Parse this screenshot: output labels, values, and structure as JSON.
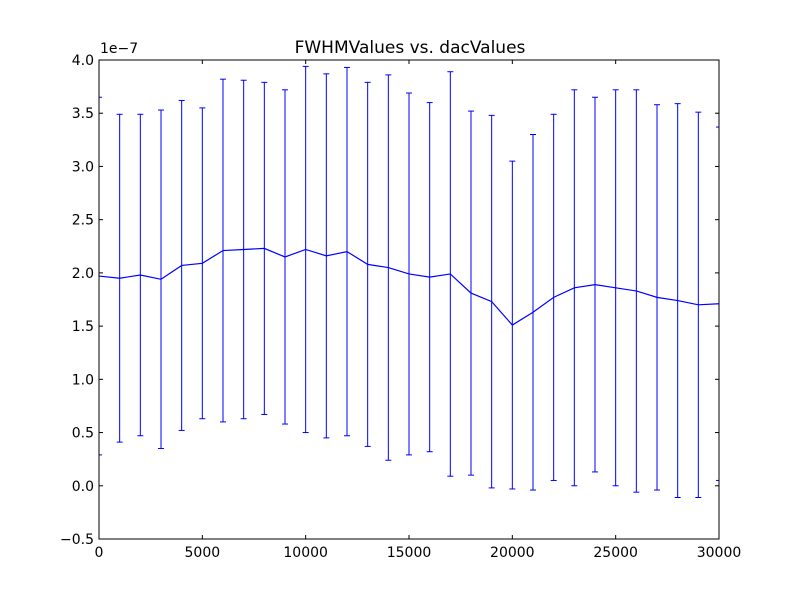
{
  "chart_data": {
    "type": "line",
    "title": "FWHMValues vs. dacValues",
    "xlabel": "",
    "ylabel": "",
    "y_offset_label": "1e−7",
    "y_scale": 1e-07,
    "xlim": [
      0,
      30000
    ],
    "ylim": [
      -0.5,
      4.0
    ],
    "grid": false,
    "line_color": "#0000ff",
    "x_ticks": [
      0,
      5000,
      10000,
      15000,
      20000,
      25000,
      30000
    ],
    "x_tick_labels": [
      "0",
      "5000",
      "10000",
      "15000",
      "20000",
      "25000",
      "30000"
    ],
    "y_ticks": [
      -0.5,
      0.0,
      0.5,
      1.0,
      1.5,
      2.0,
      2.5,
      3.0,
      3.5,
      4.0
    ],
    "y_tick_labels": [
      "−0.5",
      "0.0",
      "0.5",
      "1.0",
      "1.5",
      "2.0",
      "2.5",
      "3.0",
      "3.5",
      "4.0"
    ],
    "series": [
      {
        "x": [
          0,
          1000,
          2000,
          3000,
          4000,
          5000,
          6000,
          7000,
          8000,
          9000,
          10000,
          11000,
          12000,
          13000,
          14000,
          15000,
          16000,
          17000,
          18000,
          19000,
          20000,
          21000,
          22000,
          23000,
          24000,
          25000,
          26000,
          27000,
          28000,
          29000,
          30000
        ],
        "y": [
          1.97,
          1.95,
          1.98,
          1.94,
          2.07,
          2.09,
          2.21,
          2.22,
          2.23,
          2.15,
          2.22,
          2.16,
          2.2,
          2.08,
          2.05,
          1.99,
          1.96,
          1.99,
          1.81,
          1.73,
          1.51,
          1.63,
          1.77,
          1.86,
          1.89,
          1.86,
          1.83,
          1.77,
          1.74,
          1.7,
          1.71
        ],
        "yerr": [
          1.68,
          1.54,
          1.51,
          1.59,
          1.55,
          1.46,
          1.61,
          1.59,
          1.56,
          1.57,
          1.72,
          1.71,
          1.73,
          1.71,
          1.81,
          1.7,
          1.64,
          1.9,
          1.71,
          1.75,
          1.54,
          1.67,
          1.72,
          1.86,
          1.76,
          1.86,
          1.89,
          1.81,
          1.85,
          1.81,
          1.66
        ]
      }
    ]
  }
}
